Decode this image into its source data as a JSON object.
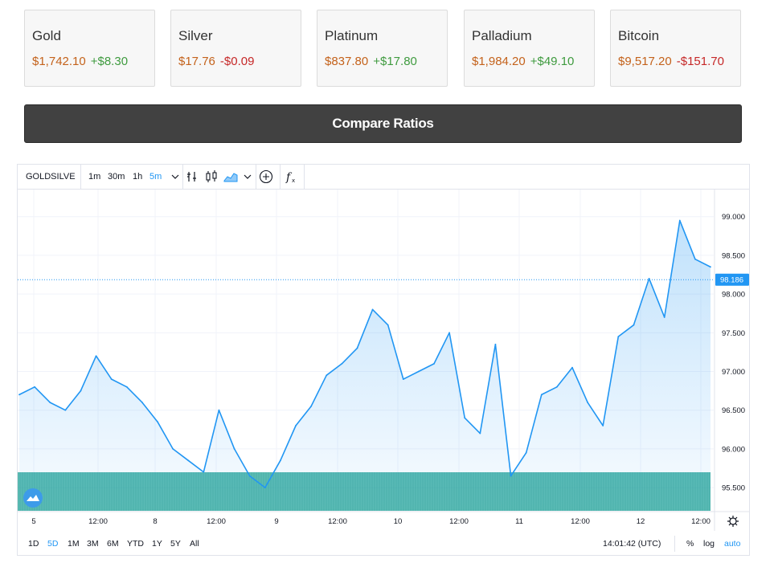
{
  "cards": [
    {
      "name": "Gold",
      "price": "$1,742.10",
      "change": "+$8.30",
      "dir": "pos"
    },
    {
      "name": "Silver",
      "price": "$17.76",
      "change": "-$0.09",
      "dir": "neg"
    },
    {
      "name": "Platinum",
      "price": "$837.80",
      "change": "+$17.80",
      "dir": "pos"
    },
    {
      "name": "Palladium",
      "price": "$1,984.20",
      "change": "+$49.10",
      "dir": "pos"
    },
    {
      "name": "Bitcoin",
      "price": "$9,517.20",
      "change": "-$151.70",
      "dir": "neg"
    }
  ],
  "compare_label": "Compare Ratios",
  "toolbar": {
    "symbol": "GOLDSILVER",
    "intervals": [
      "1m",
      "30m",
      "1h",
      "5m"
    ],
    "active_interval": "5m",
    "icons": [
      "indicators-icon",
      "candles-icon",
      "area-icon",
      "chevron-down-icon",
      "add-compare-icon",
      "fx-icon"
    ]
  },
  "bottom": {
    "ranges": [
      "1D",
      "5D",
      "1M",
      "3M",
      "6M",
      "YTD",
      "1Y",
      "5Y",
      "All"
    ],
    "active_range": "5D",
    "time": "14:01:42 (UTC)",
    "percent": "%",
    "log": "log",
    "auto": "auto"
  },
  "chart_data": {
    "type": "area",
    "ylim": [
      95.2,
      99.35
    ],
    "y_ticks": [
      "99.000",
      "98.500",
      "98.000",
      "97.500",
      "97.000",
      "96.500",
      "96.000",
      "95.500"
    ],
    "y_tick_values": [
      99.0,
      98.5,
      98.0,
      97.5,
      97.0,
      96.5,
      96.0,
      95.5
    ],
    "x_ticks": [
      "5",
      "12:00",
      "8",
      "12:00",
      "9",
      "12:00",
      "10",
      "12:00",
      "11",
      "12:00",
      "12",
      "12:00"
    ],
    "last_value_label": "98.186",
    "last_value": 98.186,
    "series_color": "#2196f3",
    "volume_color": "#26a69a",
    "series": [
      {
        "x": [
          "5 00:00",
          "5 03:00",
          "5 06:00",
          "5 09:00",
          "5 12:00",
          "5 15:00",
          "5 18:00",
          "5 21:00",
          "8 00:00",
          "8 03:00",
          "8 06:00",
          "8 09:00",
          "8 12:00",
          "8 15:00",
          "8 18:00",
          "8 21:00",
          "9 00:00",
          "9 03:00",
          "9 06:00",
          "9 09:00",
          "9 12:00",
          "9 15:00",
          "9 18:00",
          "9 21:00",
          "10 00:00",
          "10 03:00",
          "10 06:00",
          "10 09:00",
          "10 12:00",
          "10 15:00",
          "10 18:00",
          "10 21:00",
          "11 00:00",
          "11 03:00",
          "11 06:00",
          "11 09:00",
          "11 12:00",
          "11 15:00",
          "11 18:00",
          "11 21:00",
          "12 00:00",
          "12 03:00",
          "12 06:00",
          "12 09:00",
          "12 12:00",
          "12 14:00"
        ],
        "values": [
          96.7,
          96.8,
          96.6,
          96.5,
          96.75,
          97.2,
          96.9,
          96.8,
          96.6,
          96.35,
          96.0,
          95.85,
          95.7,
          96.5,
          96.0,
          95.65,
          95.5,
          95.85,
          96.3,
          96.55,
          96.95,
          97.1,
          97.3,
          97.8,
          97.6,
          96.9,
          97.0,
          97.1,
          97.5,
          96.4,
          96.2,
          97.35,
          95.65,
          95.95,
          96.7,
          96.8,
          97.05,
          96.6,
          96.3,
          97.45,
          97.6,
          98.2,
          97.7,
          98.95,
          98.45,
          98.35
        ]
      }
    ]
  }
}
